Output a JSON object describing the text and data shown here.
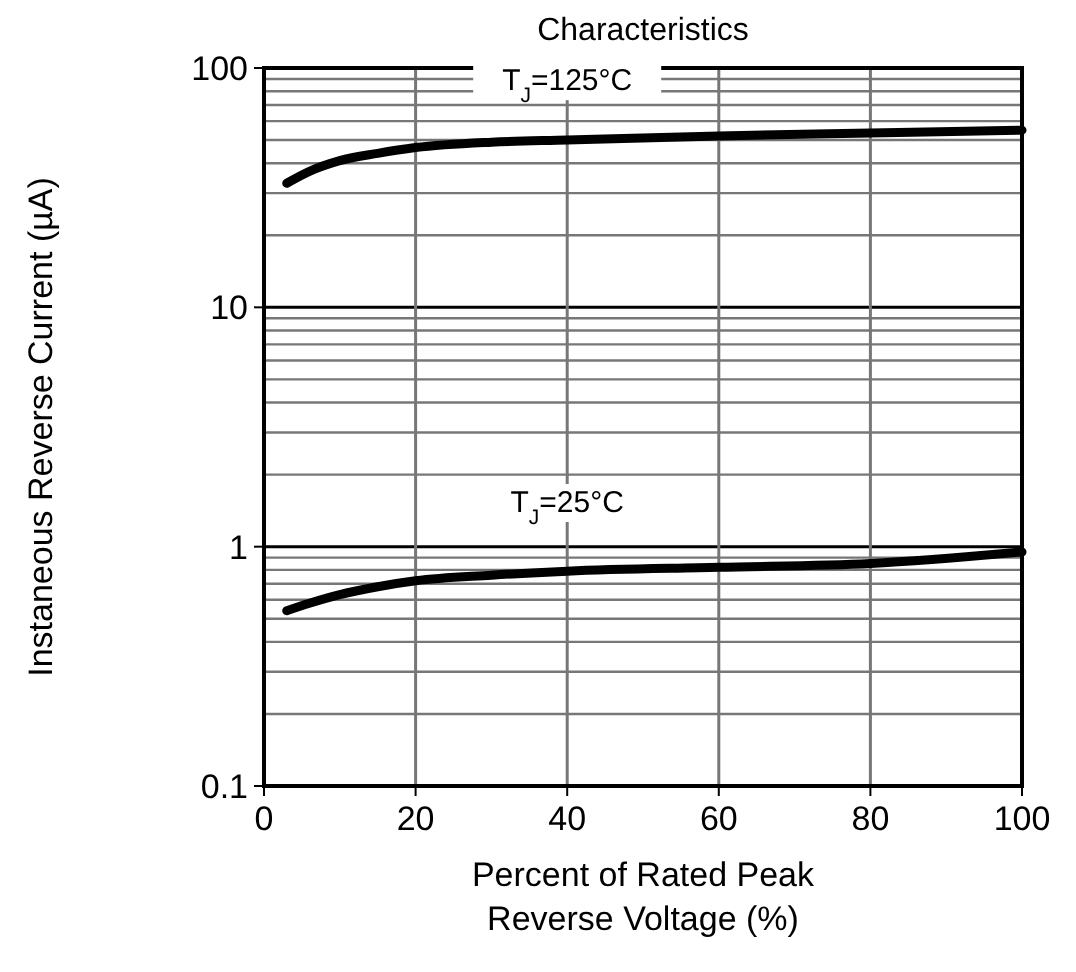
{
  "chart_data": {
    "type": "line",
    "title": "Characteristics",
    "xlabel": "Percent of Rated Peak Reverse Voltage (%)",
    "ylabel": "Instaneous Reverse Current (µA)",
    "x": [
      3,
      6,
      10,
      15,
      20,
      30,
      40,
      60,
      80,
      100
    ],
    "series": [
      {
        "color": "#000000",
        "values": [
          33,
          37,
          41,
          44,
          46.5,
          49,
          50,
          52,
          53.5,
          55
        ]
      },
      {
        "color": "#000000",
        "values": [
          0.54,
          0.58,
          0.63,
          0.68,
          0.72,
          0.76,
          0.79,
          0.82,
          0.85,
          0.95
        ]
      }
    ],
    "xlim": [
      0,
      100
    ],
    "xticks": [
      0,
      20,
      40,
      60,
      80,
      100
    ],
    "ylim": [
      0.1,
      100
    ],
    "yticks": [
      0.1,
      1,
      10,
      100
    ],
    "log": "y",
    "grid": true,
    "marker": "none",
    "line_style": "solid",
    "annotations": [
      "T$_{J}$=125°C",
      "T$_{J}$=25°C"
    ]
  }
}
